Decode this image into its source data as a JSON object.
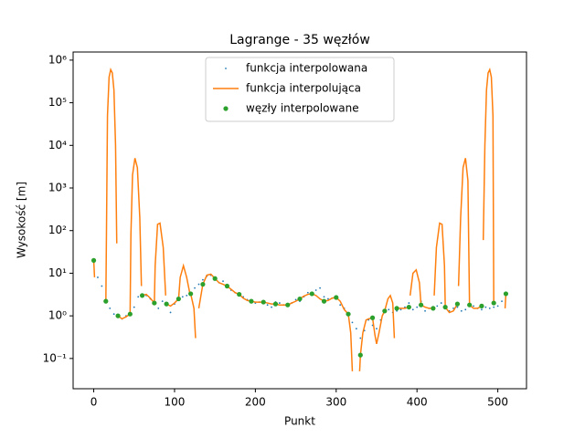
{
  "chart_data": {
    "type": "line",
    "title": "Lagrange - 35 węzłów",
    "x_label": "Punkt",
    "y_label": "Wysokość [m]",
    "log_y": true,
    "legend": "upper center",
    "xlim": [
      -25.5,
      535.5
    ],
    "xticks": [
      0,
      100,
      200,
      300,
      400,
      500
    ],
    "ylim": [
      0.0195,
      1550000
    ],
    "yticks": [
      {
        "value": 0.1,
        "label": "10⁻¹"
      },
      {
        "value": 1,
        "label": "10⁰"
      },
      {
        "value": 10,
        "label": "10¹"
      },
      {
        "value": 100,
        "label": "10²"
      },
      {
        "value": 1000,
        "label": "10³"
      },
      {
        "value": 10000,
        "label": "10⁴"
      },
      {
        "value": 100000,
        "label": "10⁵"
      },
      {
        "value": 1000000,
        "label": "10⁶"
      }
    ],
    "series": [
      {
        "name": "funkcja interpolowana",
        "color": "#1f77b4",
        "mode": "points",
        "x": [
          0,
          5,
          10,
          15,
          20,
          25,
          30,
          35,
          40,
          45,
          50,
          55,
          60,
          65,
          70,
          75,
          80,
          85,
          90,
          95,
          100,
          105,
          110,
          115,
          120,
          125,
          130,
          135,
          140,
          145,
          150,
          155,
          160,
          165,
          170,
          175,
          180,
          185,
          190,
          195,
          200,
          205,
          210,
          215,
          220,
          225,
          230,
          235,
          240,
          245,
          250,
          255,
          260,
          265,
          270,
          275,
          280,
          285,
          290,
          295,
          300,
          305,
          310,
          315,
          320,
          325,
          330,
          335,
          340,
          345,
          350,
          355,
          360,
          365,
          370,
          375,
          380,
          385,
          390,
          395,
          400,
          405,
          410,
          415,
          420,
          425,
          430,
          435,
          440,
          445,
          450,
          455,
          460,
          465,
          470,
          475,
          480,
          485,
          490,
          495,
          500,
          505,
          510
        ],
        "values": [
          20,
          8,
          5,
          2.2,
          1.5,
          1.1,
          1.0,
          0.85,
          1.0,
          1.1,
          1.6,
          2.8,
          3.2,
          3.0,
          2.5,
          2.0,
          1.5,
          2.2,
          2.0,
          1.2,
          1.9,
          2.5,
          2.8,
          3.0,
          3.5,
          4.5,
          5.5,
          7,
          8.5,
          9,
          7.5,
          6,
          6.5,
          5,
          4,
          3.5,
          3.2,
          2.8,
          2.4,
          2.2,
          2.0,
          2.1,
          2.2,
          1.8,
          1.6,
          2.1,
          2.0,
          1.8,
          1.7,
          2.0,
          2.4,
          2.2,
          2.8,
          3.5,
          3.3,
          4.0,
          4.5,
          2.8,
          2.5,
          2.6,
          2.8,
          1.8,
          1.5,
          1.1,
          0.7,
          0.5,
          0.3,
          0.45,
          0.8,
          0.6,
          0.5,
          0.8,
          1.2,
          1.4,
          1.2,
          1.3,
          1.4,
          1.6,
          2.0,
          1.4,
          1.6,
          2.2,
          1.3,
          1.5,
          1.4,
          1.7,
          2.0,
          1.5,
          1.3,
          1.5,
          1.6,
          1.3,
          1.4,
          1.8,
          1.7,
          1.5,
          1.4,
          1.6,
          1.5,
          1.6,
          1.7,
          2.2,
          3.3
        ]
      },
      {
        "name": "funkcja interpolująca",
        "color": "#ff7f0e",
        "mode": "lines",
        "x": [
          0,
          1,
          2,
          15,
          16,
          17,
          19,
          21,
          23,
          25,
          27,
          28.5,
          29.5,
          30,
          35,
          40,
          45,
          46,
          48,
          51,
          54,
          57,
          59,
          59.6,
          60,
          65,
          70,
          75,
          76,
          79,
          82,
          86,
          89,
          89.7,
          90,
          95,
          100,
          105,
          107,
          111,
          115,
          119,
          119.5,
          120,
          124,
          126,
          127,
          130,
          135,
          140,
          145,
          150,
          155,
          160,
          165,
          170,
          175,
          180,
          185,
          190,
          195,
          200,
          205,
          210,
          215,
          220,
          225,
          230,
          235,
          240,
          245,
          250,
          255,
          260,
          265,
          270,
          275,
          280,
          285,
          290,
          295,
          300,
          305,
          310,
          315,
          318,
          320,
          324,
          329,
          330,
          333,
          337,
          340,
          345,
          348,
          350,
          353,
          357,
          360,
          364,
          367,
          370,
          372,
          373,
          375,
          380,
          385,
          390,
          390.5,
          391.5,
          395,
          399,
          403,
          405,
          410,
          415,
          420,
          420.5,
          421.3,
          424,
          428,
          431,
          434,
          435,
          440,
          445,
          450,
          450.5,
          451.4,
          454,
          457,
          460,
          463,
          464,
          465,
          470,
          475,
          480,
          481,
          482,
          484,
          486,
          488,
          490,
          492,
          494,
          495,
          496,
          509,
          510
        ],
        "values": [
          20,
          8,
          null,
          2.2,
          300,
          50000,
          400000,
          600000,
          500000,
          200000,
          10000,
          50,
          null,
          1.0,
          0.85,
          0.95,
          1.1,
          80,
          2000,
          5000,
          3000,
          200,
          5,
          null,
          3.0,
          3.2,
          2.6,
          2.0,
          15,
          140,
          150,
          40,
          3,
          null,
          1.9,
          1.7,
          2.0,
          2.5,
          8,
          15,
          8,
          3.3,
          null,
          3.3,
          1.5,
          0.3,
          null,
          1.5,
          5.5,
          9,
          9.5,
          7.5,
          6,
          5.5,
          5.0,
          4.2,
          3.5,
          3.2,
          2.6,
          2.3,
          2.2,
          2.1,
          2.1,
          2.1,
          2.0,
          1.9,
          1.9,
          1.8,
          1.8,
          1.8,
          2.0,
          2.2,
          2.5,
          2.9,
          3.2,
          3.3,
          3.0,
          2.5,
          2.2,
          2.3,
          2.6,
          2.7,
          2.2,
          1.4,
          1.1,
          0.4,
          0.05,
          null,
          0.05,
          0.12,
          0.4,
          0.8,
          0.85,
          0.9,
          0.35,
          0.22,
          0.4,
          1.0,
          1.3,
          2.5,
          3.0,
          2.0,
          0.3,
          null,
          1.5,
          1.5,
          1.5,
          1.6,
          null,
          3,
          10,
          12,
          6,
          1.8,
          1.6,
          1.5,
          1.5,
          null,
          3,
          40,
          150,
          140,
          15,
          1.6,
          1.2,
          1.3,
          1.9,
          null,
          5,
          200,
          3000,
          5000,
          1500,
          50,
          1.8,
          1.5,
          1.5,
          1.7,
          null,
          60,
          10000,
          200000,
          500000,
          600000,
          400000,
          50000,
          2.0,
          null,
          1.5,
          3.3
        ]
      },
      {
        "name": "węzły interpolowane",
        "color": "#2ca02c",
        "mode": "markers",
        "x": [
          0,
          15,
          30,
          45,
          60,
          75,
          90,
          105,
          120,
          135,
          150,
          165,
          180,
          195,
          210,
          225,
          240,
          255,
          270,
          285,
          300,
          315,
          330,
          345,
          360,
          375,
          390,
          405,
          420,
          435,
          450,
          465,
          480,
          495,
          510
        ],
        "values": [
          20,
          2.2,
          1.0,
          1.1,
          3.0,
          2.0,
          1.9,
          2.5,
          3.3,
          5.5,
          7.5,
          5.0,
          3.2,
          2.2,
          2.1,
          1.9,
          1.8,
          2.5,
          3.3,
          2.2,
          2.7,
          1.1,
          0.12,
          0.9,
          1.3,
          1.5,
          1.6,
          1.8,
          1.5,
          1.6,
          1.9,
          1.8,
          1.7,
          2.0,
          3.3
        ]
      }
    ]
  }
}
